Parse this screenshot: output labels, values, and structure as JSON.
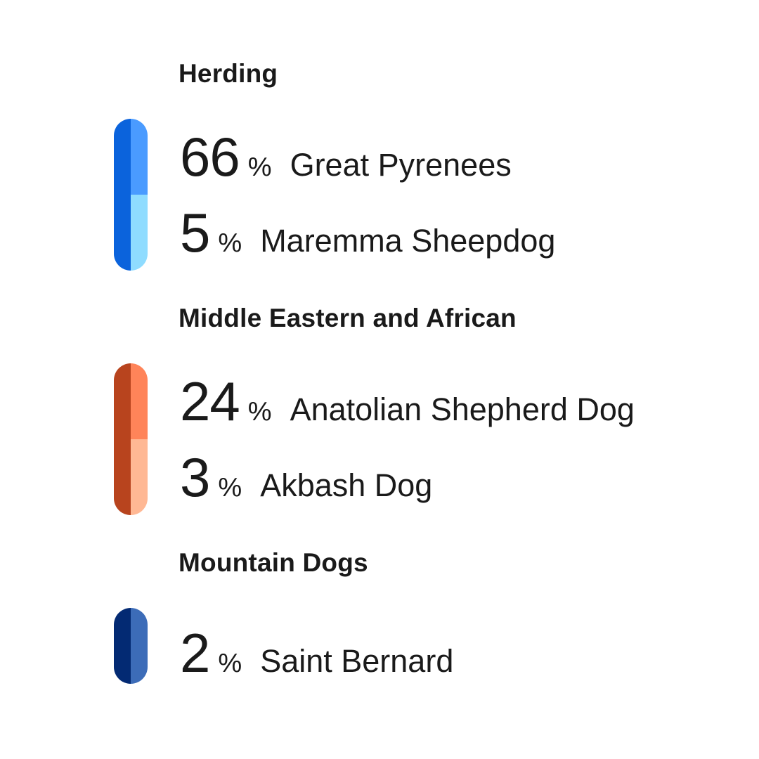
{
  "chart_data": {
    "type": "bar",
    "orientation": "stacked-pill-groups",
    "unit": "%",
    "groups": [
      {
        "title": "Herding",
        "dark_color": "#0b63dc",
        "items": [
          {
            "breed": "Great Pyrenees",
            "percent": 66,
            "color": "#4a9bff"
          },
          {
            "breed": "Maremma Sheepdog",
            "percent": 5,
            "color": "#8fdcff"
          }
        ]
      },
      {
        "title": "Middle Eastern and African",
        "dark_color": "#b8441e",
        "items": [
          {
            "breed": "Anatolian Shepherd Dog",
            "percent": 24,
            "color": "#ff8459"
          },
          {
            "breed": "Akbash Dog",
            "percent": 3,
            "color": "#ffb894"
          }
        ]
      },
      {
        "title": "Mountain Dogs",
        "dark_color": "#032a73",
        "items": [
          {
            "breed": "Saint Bernard",
            "percent": 2,
            "color": "#3c6cb8"
          }
        ]
      }
    ]
  }
}
